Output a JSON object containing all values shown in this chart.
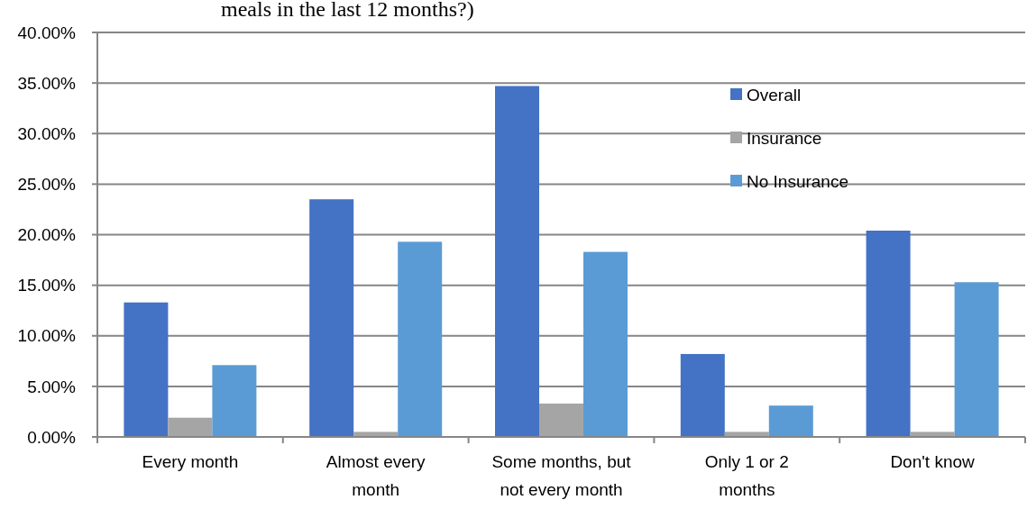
{
  "chart_data": {
    "type": "bar",
    "title": "meals in the last 12 months?)",
    "categories": [
      "Every month",
      "Almost every month",
      "Some months, but not every month",
      "Only 1 or 2 months",
      "Don't know"
    ],
    "series": [
      {
        "name": "Overall",
        "color": "#4472c4",
        "values": [
          13.3,
          23.5,
          34.7,
          8.2,
          20.4
        ]
      },
      {
        "name": "Insurance",
        "color": "#a5a5a5",
        "values": [
          1.9,
          0.5,
          3.3,
          0.5,
          0.5
        ]
      },
      {
        "name": "No Insurance",
        "color": "#5b9bd5",
        "values": [
          7.1,
          19.3,
          18.3,
          3.1,
          15.3
        ]
      }
    ],
    "ylim": [
      0,
      40
    ],
    "yticks": [
      {
        "value": 0,
        "label": "0.00%"
      },
      {
        "value": 5,
        "label": "5.00%"
      },
      {
        "value": 10,
        "label": "10.00%"
      },
      {
        "value": 15,
        "label": "15.00%"
      },
      {
        "value": 20,
        "label": "20.00%"
      },
      {
        "value": 25,
        "label": "25.00%"
      },
      {
        "value": 30,
        "label": "30.00%"
      },
      {
        "value": 35,
        "label": "35.00%"
      },
      {
        "value": 40,
        "label": "40.00%"
      }
    ],
    "grid": "y",
    "legend": "top right"
  }
}
